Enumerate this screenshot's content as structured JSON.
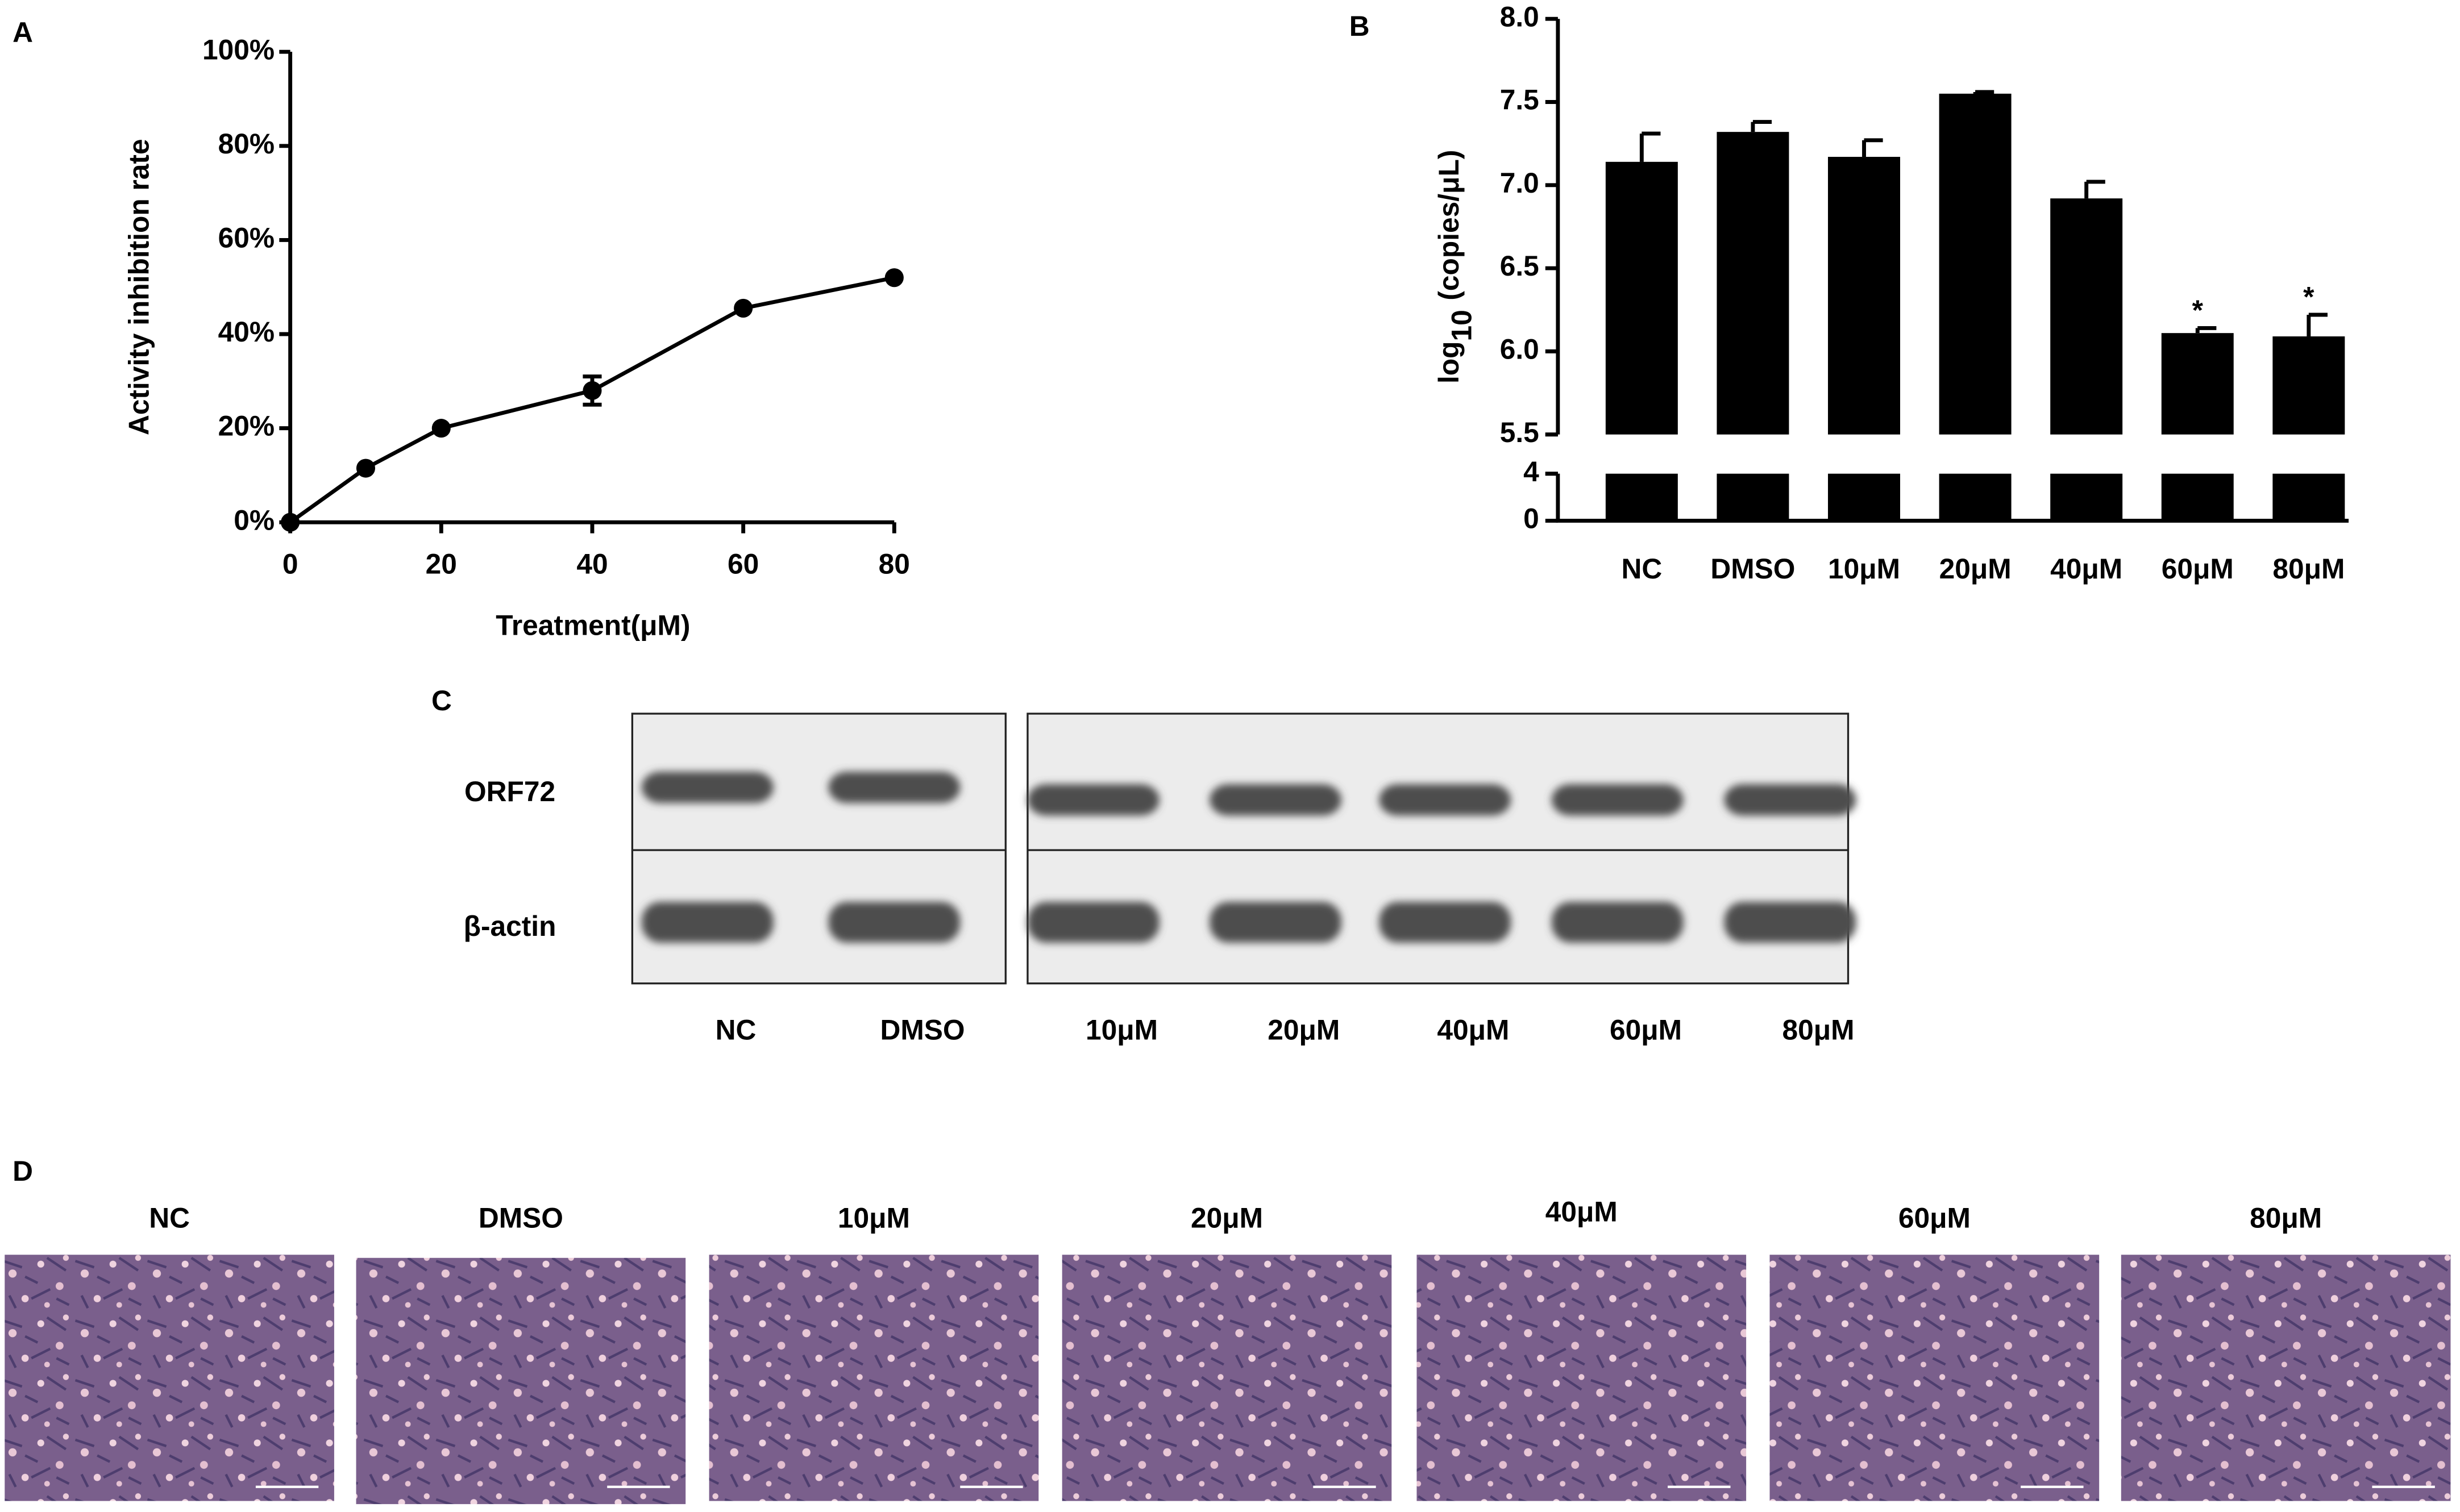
{
  "chart_data": [
    {
      "type": "line",
      "panel": "A",
      "xlabel": "Treatment(μM)",
      "ylabel": "Activity inhibition rate",
      "x": [
        0,
        10,
        20,
        40,
        60,
        80
      ],
      "values": [
        0,
        11.5,
        20,
        28,
        45.5,
        52
      ],
      "errors": [
        null,
        null,
        null,
        3,
        null,
        null
      ],
      "color": "#000000",
      "xlim": [
        0,
        80
      ],
      "xticks": [
        0,
        20,
        40,
        60,
        80
      ],
      "ylim": [
        0,
        100
      ],
      "yticks": [
        {
          "value": 0,
          "label": "0%"
        },
        {
          "value": 20,
          "label": "20%"
        },
        {
          "value": 40,
          "label": "40%"
        },
        {
          "value": 60,
          "label": "60%"
        },
        {
          "value": 80,
          "label": "80%"
        },
        {
          "value": 100,
          "label": "100%"
        }
      ]
    },
    {
      "type": "bar",
      "panel": "B",
      "ylabel": {
        "base": "log",
        "subscript": "10",
        "rest": "(copies/μL)"
      },
      "categories": [
        "NC",
        "DMSO",
        "10μM",
        "20μM",
        "40μM",
        "60μM",
        "80μM"
      ],
      "values": [
        7.14,
        7.32,
        7.17,
        7.55,
        6.92,
        6.11,
        6.09
      ],
      "errors": [
        0.17,
        0.06,
        0.1,
        0.01,
        0.1,
        0.03,
        0.13
      ],
      "color": "#000000",
      "ylim": [
        5.5,
        8.0
      ],
      "yticks": [
        {
          "value": 5.5,
          "label": "5.5"
        },
        {
          "value": 6,
          "label": "6.0"
        },
        {
          "value": 6.5,
          "label": "6.5"
        },
        {
          "value": 7,
          "label": "7.0"
        },
        {
          "value": 7.5,
          "label": "7.5"
        },
        {
          "value": 8,
          "label": "8.0"
        }
      ],
      "ylim_lower": [
        0,
        4
      ],
      "yticks_lower": [
        0,
        4
      ],
      "annotations": [
        {
          "text": "*",
          "category": "60μM"
        },
        {
          "text": "*",
          "category": "80μM"
        }
      ]
    }
  ],
  "blot": {
    "panel": "C",
    "rows": [
      "ORF72",
      "β-actin"
    ],
    "lanes": [
      "NC",
      "DMSO",
      "10μM",
      "20μM",
      "40μM",
      "60μM",
      "80μM"
    ]
  },
  "microscopy": {
    "panel": "D",
    "images": [
      "NC",
      "DMSO",
      "10μM",
      "20μM",
      "40μM",
      "60μM",
      "80μM"
    ]
  }
}
